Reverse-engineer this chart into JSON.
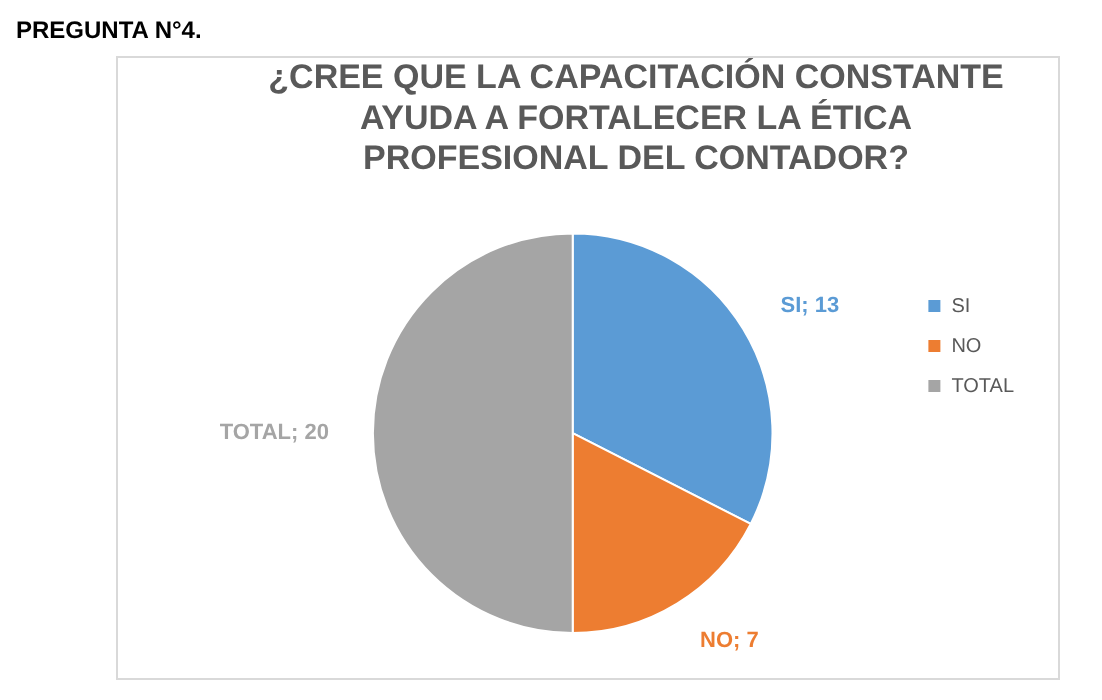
{
  "chart_data": {
    "type": "pie",
    "title": "¿CREE QUE LA CAPACITACIÓN CONSTANTE AYUDA A FORTALECER LA ÉTICA PROFESIONAL DEL CONTADOR?",
    "annotations": [
      "PREGUNTA N°4."
    ],
    "categories": [
      "SI",
      "NO",
      "TOTAL"
    ],
    "values": [
      13,
      7,
      20
    ],
    "colors": [
      "#5b9bd5",
      "#ed7d31",
      "#a5a5a5"
    ],
    "value_labels": [
      "SI; 13",
      "NO; 7",
      "TOTAL; 20"
    ],
    "legend": "right"
  }
}
